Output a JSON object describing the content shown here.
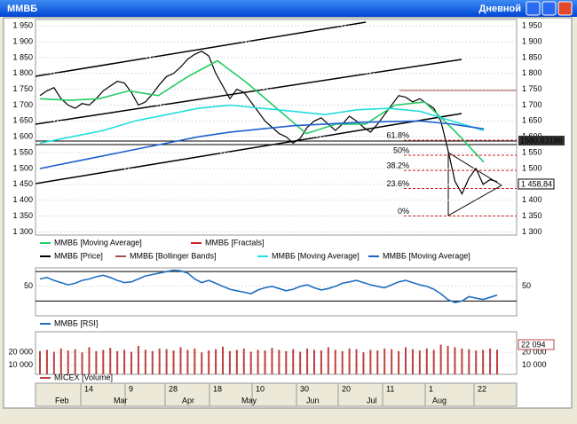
{
  "window": {
    "title": "ММВБ",
    "period": "Дневной"
  },
  "chart_data": [
    {
      "type": "line",
      "ylim": [
        1290,
        1970
      ],
      "yticks": [
        {
          "value": 1950,
          "label": "1 950"
        },
        {
          "value": 1900,
          "label": "1 900"
        },
        {
          "value": 1850,
          "label": "1 850"
        },
        {
          "value": 1800,
          "label": "1 800"
        },
        {
          "value": 1750,
          "label": "1 750"
        },
        {
          "value": 1700,
          "label": "1 700"
        },
        {
          "value": 1650,
          "label": "1 650"
        },
        {
          "value": 1600,
          "label": "1 600"
        },
        {
          "value": 1550,
          "label": "1 550"
        },
        {
          "value": 1500,
          "label": "1 500"
        },
        {
          "value": 1450,
          "label": "1 450"
        },
        {
          "value": 1400,
          "label": "1 400"
        },
        {
          "value": 1350,
          "label": "1 350"
        },
        {
          "value": 1300,
          "label": "1 300"
        }
      ],
      "series": [
        {
          "name": "ММВБ [Price]",
          "color": "#000000",
          "values": [
            1730,
            1745,
            1755,
            1720,
            1700,
            1690,
            1705,
            1700,
            1720,
            1745,
            1760,
            1775,
            1770,
            1740,
            1700,
            1710,
            1735,
            1765,
            1790,
            1800,
            1820,
            1845,
            1860,
            1870,
            1855,
            1800,
            1760,
            1720,
            1750,
            1740,
            1710,
            1680,
            1650,
            1630,
            1610,
            1600,
            1580,
            1595,
            1630,
            1650,
            1660,
            1640,
            1620,
            1640,
            1665,
            1650,
            1630,
            1615,
            1640,
            1670,
            1700,
            1730,
            1725,
            1710,
            1720,
            1705,
            1690,
            1650,
            1560,
            1460,
            1420,
            1470,
            1500,
            1450,
            1465,
            1458.84
          ]
        },
        {
          "name": "ММВБ [Moving Average]",
          "color": "#22cc66",
          "values": [
            1720,
            1715,
            1720,
            1745,
            1730,
            1790,
            1840,
            1770,
            1690,
            1610,
            1640,
            1640,
            1700,
            1710,
            1620,
            1520
          ]
        },
        {
          "name": "ММВБ [Moving Average]",
          "color": "#22dddd",
          "values": [
            1580,
            1600,
            1620,
            1650,
            1670,
            1690,
            1700,
            1690,
            1680,
            1670,
            1685,
            1690,
            1680,
            1650,
            1620
          ]
        },
        {
          "name": "ММВБ [Moving Average]",
          "color": "#1f5fd0",
          "values": [
            1500,
            1520,
            1540,
            1560,
            1580,
            1600,
            1615,
            1625,
            1635,
            1640,
            1645,
            1648,
            1650,
            1640,
            1625
          ]
        }
      ],
      "indicators": [
        {
          "name": "ММВБ [Fractals]",
          "color": "#cc2222"
        },
        {
          "name": "ММВБ [Bollinger Bands]",
          "color": "#a05050"
        }
      ],
      "fibonacci": [
        {
          "value": 1589,
          "label": "61.8%"
        },
        {
          "value": 1542,
          "label": "50%"
        },
        {
          "value": 1494,
          "label": "38.2%"
        },
        {
          "value": 1437,
          "label": "23.6%"
        },
        {
          "value": 1350,
          "label": "0%"
        }
      ],
      "price_labels": [
        "1580,63186",
        "1 458,84"
      ]
    },
    {
      "type": "line",
      "ylim": [
        10,
        75
      ],
      "yticks": [
        50
      ],
      "levels": [
        30,
        70
      ],
      "series": [
        {
          "name": "ММВБ [RSI]",
          "color": "#1f6fc0",
          "values": [
            60,
            62,
            58,
            55,
            52,
            54,
            58,
            60,
            63,
            65,
            62,
            58,
            55,
            56,
            60,
            64,
            66,
            68,
            70,
            72,
            71,
            68,
            60,
            55,
            58,
            54,
            50,
            46,
            44,
            42,
            40,
            45,
            48,
            50,
            47,
            44,
            46,
            50,
            52,
            48,
            45,
            47,
            50,
            54,
            56,
            58,
            55,
            52,
            50,
            48,
            52,
            56,
            58,
            55,
            52,
            50,
            46,
            40,
            32,
            28,
            30,
            36,
            34,
            32,
            35,
            38
          ]
        }
      ]
    },
    {
      "type": "bar",
      "ylim": [
        3000,
        36000
      ],
      "yticks": [
        {
          "value": 20000,
          "label": "20 000"
        },
        {
          "value": 10000,
          "label": "10 000"
        }
      ],
      "series": [
        {
          "name": "MICEX [Volume]",
          "color": "#c04040",
          "values": [
            21000,
            22000,
            20500,
            23000,
            21500,
            22500,
            20000,
            24000,
            21000,
            22000,
            23500,
            21000,
            22000,
            20500,
            25000,
            22000,
            21000,
            23000,
            22500,
            21500,
            24000,
            22000,
            23000,
            20000,
            21500,
            22500,
            24500,
            21000,
            22000,
            23000,
            20500,
            22000,
            21500,
            23500,
            22000,
            21000,
            22500,
            20500,
            23000,
            22000,
            21500,
            24000,
            22000,
            21000,
            23000,
            22500,
            20000,
            22000,
            21500,
            23000,
            22500,
            21000,
            24000,
            22500,
            21500,
            23000,
            22000,
            26000,
            25000,
            24000,
            23000,
            22500,
            21500,
            22000,
            23000,
            22094
          ]
        }
      ],
      "last_value_label": "22 094"
    }
  ],
  "date_axis": {
    "days": [
      "14",
      "9",
      "28",
      "18",
      "10",
      "30",
      "20",
      "11",
      "1",
      "22"
    ],
    "months": [
      "Feb",
      "Mar",
      "Apr",
      "May",
      "Jun",
      "Jul",
      "Aug"
    ]
  }
}
